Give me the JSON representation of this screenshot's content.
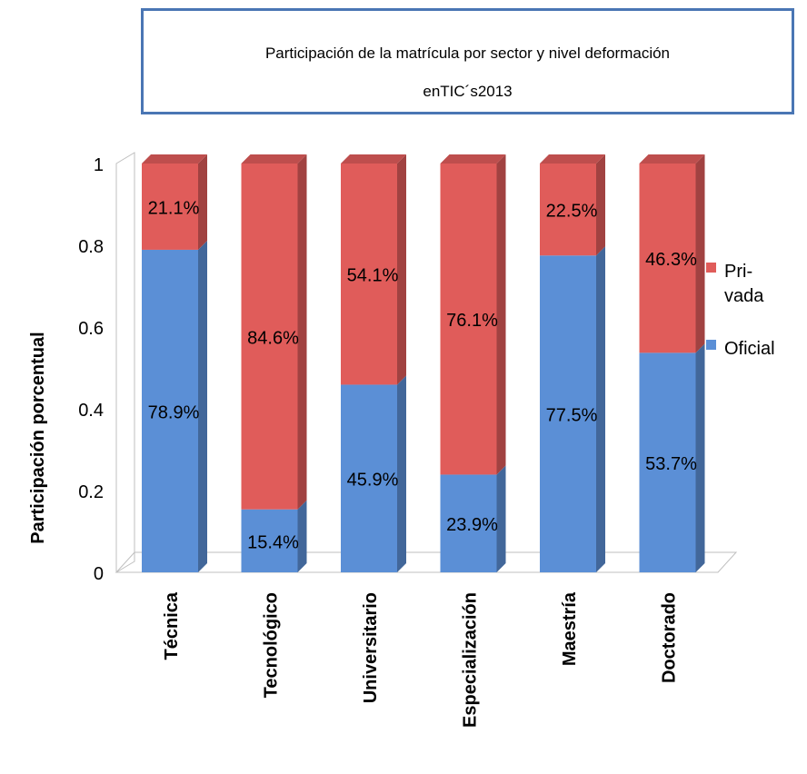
{
  "title": {
    "line1": "Participación de la matrícula por sector y nivel deformación",
    "line2": "enTIC´s2013"
  },
  "chart_data": {
    "type": "bar",
    "stacked": true,
    "categories": [
      "Técnica",
      "Tecnológico",
      "Universitario",
      "Especialización",
      "Maestría",
      "Doctorado"
    ],
    "series": [
      {
        "name": "Oficial",
        "values": [
          0.789,
          0.154,
          0.459,
          0.239,
          0.775,
          0.537
        ],
        "labels": [
          "78.9%",
          "15.4%",
          "45.9%",
          "23.9%",
          "77.5%",
          "53.7%"
        ],
        "color": "#5b8fd6"
      },
      {
        "name": "Pri-\nvada",
        "values": [
          0.211,
          0.846,
          0.541,
          0.761,
          0.225,
          0.463
        ],
        "labels": [
          "21.1%",
          "84.6%",
          "54.1%",
          "76.1%",
          "22.5%",
          "46.3%"
        ],
        "color": "#e05c5a"
      }
    ],
    "ylabel": "Participación porcentual",
    "ylim": [
      0,
      1
    ],
    "yticks": [
      "0",
      "0.2",
      "0.4",
      "0.6",
      "0.8",
      "1"
    ],
    "legend_position": "right",
    "grid": false
  }
}
